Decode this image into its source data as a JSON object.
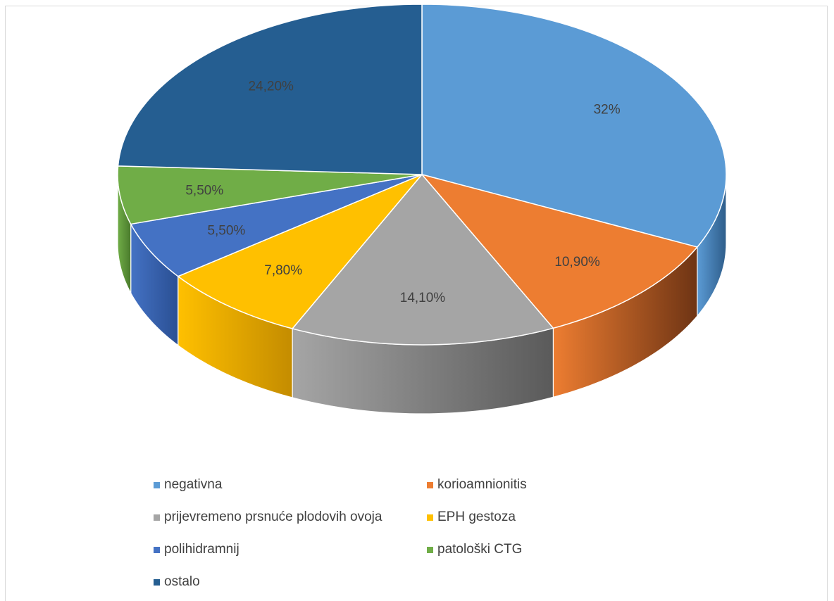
{
  "chart_data": {
    "type": "pie",
    "style": "3d",
    "title": "",
    "legend_position": "bottom",
    "slices": [
      {
        "label": "negativna",
        "value": 32,
        "display": "32%",
        "color": "#5b9bd5",
        "side": "#2e5d8a"
      },
      {
        "label": "korioamnionitis",
        "value": 10.9,
        "display": "10,90%",
        "color": "#ed7d31",
        "side": "#6e3414"
      },
      {
        "label": "prijevremeno prsnuće plodovih ovoja",
        "value": 14.1,
        "display": "14,10%",
        "color": "#a5a5a5",
        "side": "#5a5a5a"
      },
      {
        "label": "EPH gestoza",
        "value": 7.8,
        "display": "7,80%",
        "color": "#ffc000",
        "side": "#c48c00"
      },
      {
        "label": "polihidramnij",
        "value": 5.5,
        "display": "5,50%",
        "color": "#4472c4",
        "side": "#2a4f93"
      },
      {
        "label": "patološki CTG",
        "value": 5.5,
        "display": "5,50%",
        "color": "#70ad47",
        "side": "#4a7a2c"
      },
      {
        "label": "ostalo",
        "value": 24.2,
        "display": "24,20%",
        "color": "#255e91",
        "side": "#173e61"
      }
    ]
  }
}
